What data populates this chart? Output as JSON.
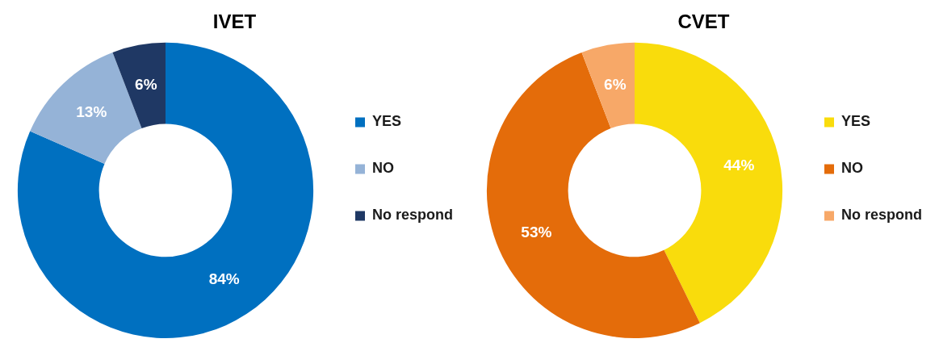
{
  "chart_data": [
    {
      "type": "donut",
      "title": "IVET",
      "categories": [
        "YES",
        "NO",
        "No respond"
      ],
      "values": [
        84,
        13,
        6
      ],
      "colors": [
        "#0070c0",
        "#95b3d7",
        "#1f3864"
      ],
      "value_labels": [
        "84%",
        "13%",
        "6%"
      ],
      "legend": "right"
    },
    {
      "type": "donut",
      "title": "CVET",
      "categories": [
        "YES",
        "NO",
        "No respond"
      ],
      "values": [
        44,
        53,
        6
      ],
      "colors": [
        "#f9dc0c",
        "#e46c0a",
        "#f7a868"
      ],
      "value_labels": [
        "44%",
        "53%",
        "6%"
      ],
      "legend": "right"
    }
  ]
}
